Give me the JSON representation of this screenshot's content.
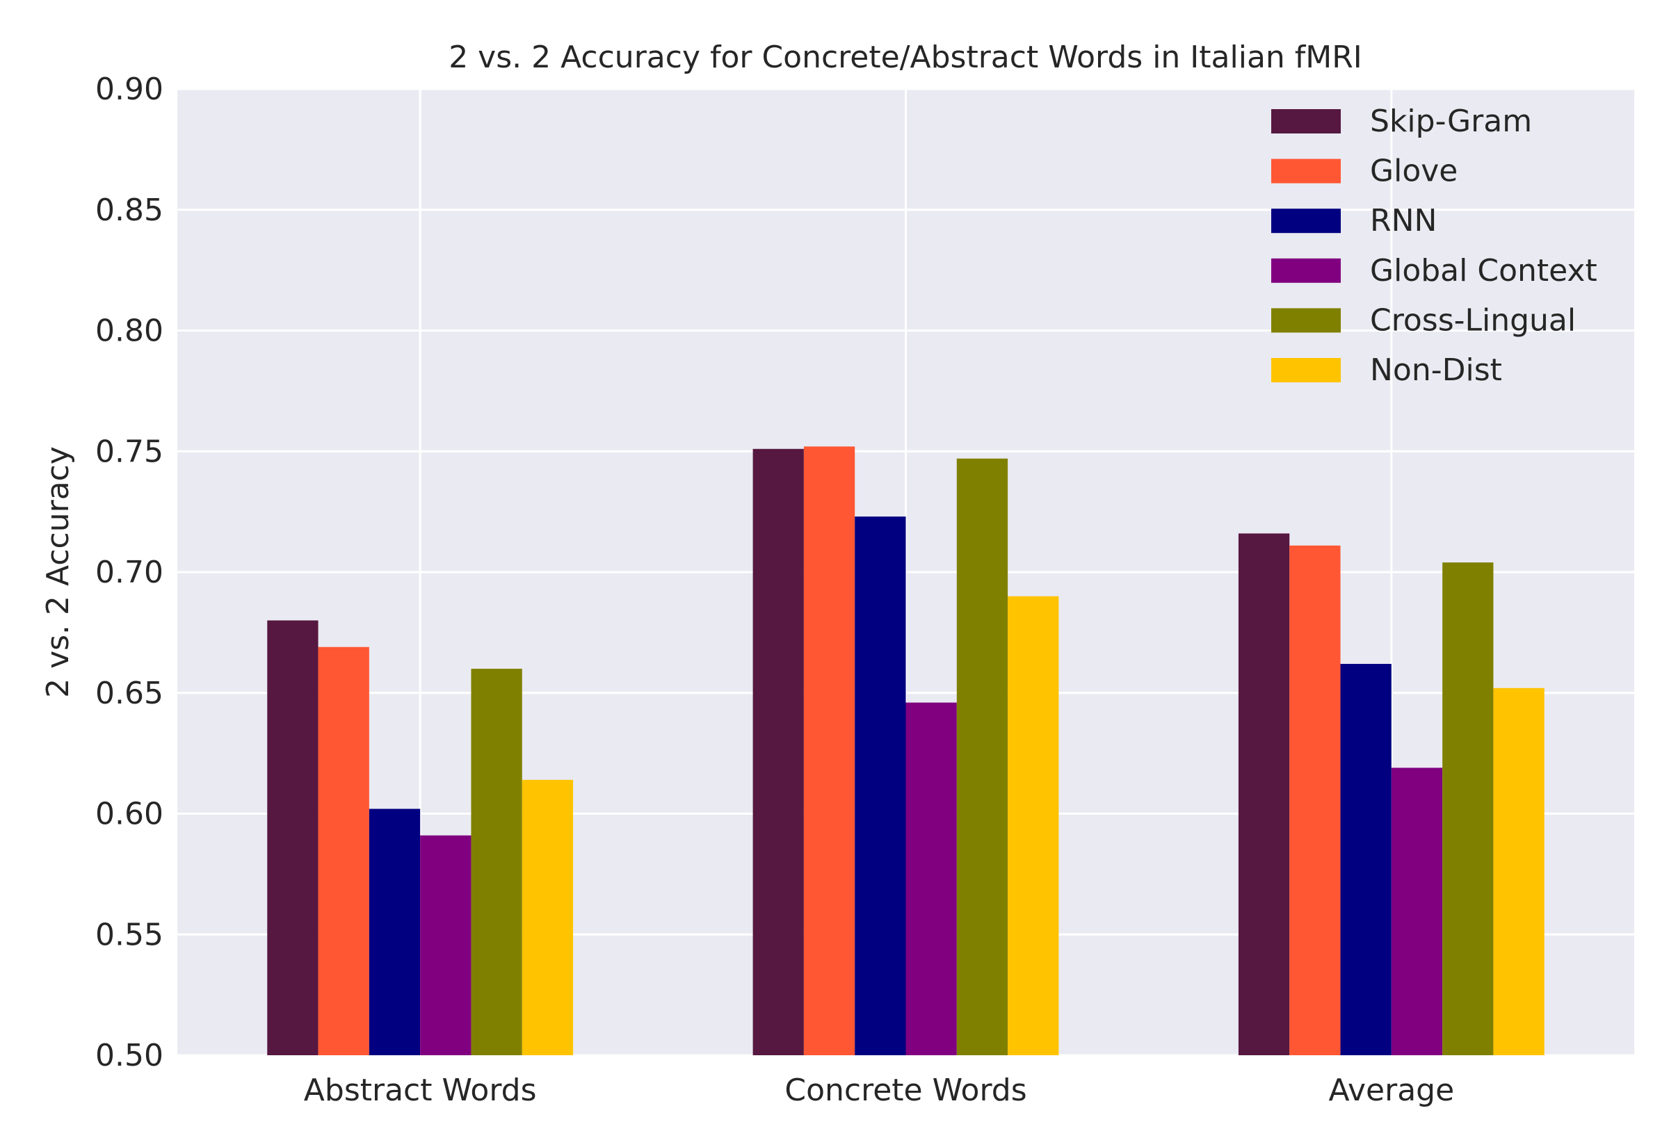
{
  "chart_data": {
    "type": "bar",
    "title": "2 vs. 2 Accuracy for Concrete/Abstract Words in Italian fMRI",
    "xlabel": "",
    "ylabel": "2 vs. 2 Accuracy",
    "ylim": [
      0.5,
      0.9
    ],
    "yticks": [
      "0.50",
      "0.55",
      "0.60",
      "0.65",
      "0.70",
      "0.75",
      "0.80",
      "0.85",
      "0.90"
    ],
    "grid": true,
    "legend_position": "top-right",
    "background_color": "#EAEAF2",
    "categories": [
      "Abstract Words",
      "Concrete Words",
      "Average"
    ],
    "series": [
      {
        "name": "Skip-Gram",
        "color": "#561840",
        "values": [
          0.68,
          0.751,
          0.716
        ]
      },
      {
        "name": "Glove",
        "color": "#FF5733",
        "values": [
          0.669,
          0.752,
          0.711
        ]
      },
      {
        "name": "RNN",
        "color": "#000080",
        "values": [
          0.602,
          0.723,
          0.662
        ]
      },
      {
        "name": "Global Context",
        "color": "#800080",
        "values": [
          0.591,
          0.646,
          0.619
        ]
      },
      {
        "name": "Cross-Lingual",
        "color": "#808000",
        "values": [
          0.66,
          0.747,
          0.704
        ]
      },
      {
        "name": "Non-Dist",
        "color": "#FFC300",
        "values": [
          0.614,
          0.69,
          0.652
        ]
      }
    ]
  }
}
